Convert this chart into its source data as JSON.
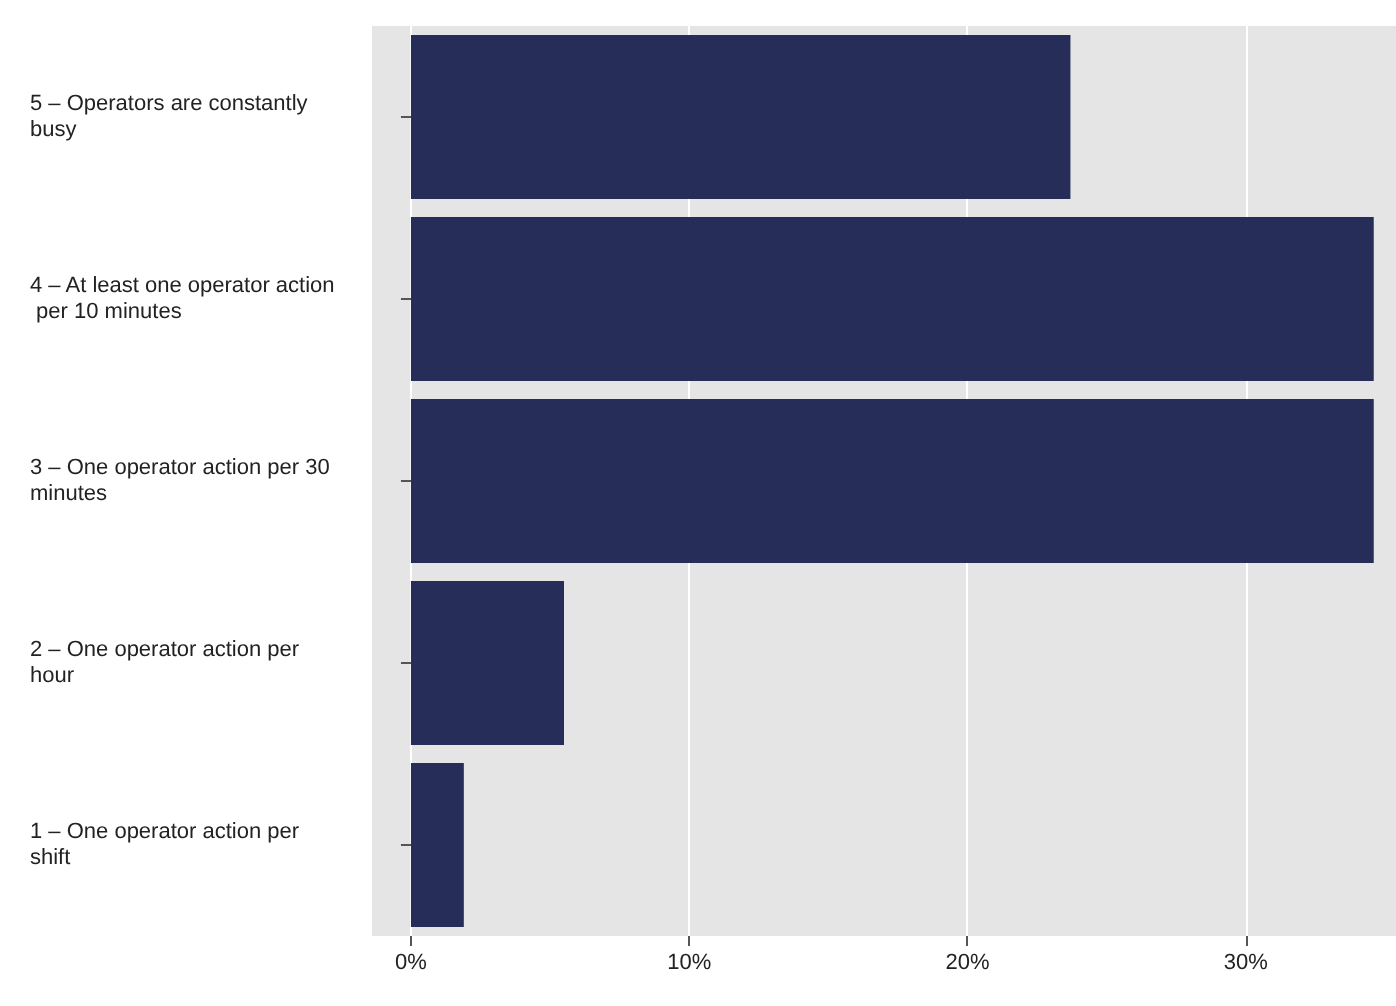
{
  "chart_data": {
    "type": "bar",
    "orientation": "horizontal",
    "categories": [
      "5 – Operators are constantly busy",
      "4 – At least one operator action per 10 minutes",
      "3 – One operator action per 30 minutes",
      "2 – One operator action per hour",
      "1 – One operator action per shift"
    ],
    "values": [
      23.7,
      34.6,
      34.6,
      5.5,
      1.9
    ],
    "color": "#252d58",
    "xlim": [
      -1.4,
      35.4
    ],
    "xticks": [
      {
        "value": 0,
        "label": "0%"
      },
      {
        "value": 10,
        "label": "10%"
      },
      {
        "value": 20,
        "label": "20%"
      },
      {
        "value": 30,
        "label": "30%"
      }
    ],
    "grid": "x"
  }
}
